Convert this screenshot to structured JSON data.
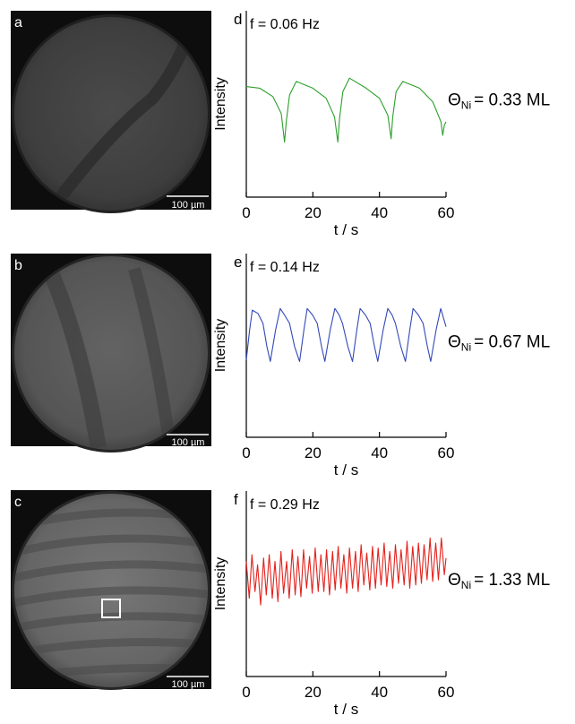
{
  "chart_data": [
    {
      "type": "line",
      "panel_label": "d",
      "image_panel_label": "a",
      "scale_bar": "100 µm",
      "annotation": "f = 0.06 Hz",
      "coverage_symbol": "Θ",
      "coverage_subscript": "Ni",
      "coverage_value": "= 0.33 ML",
      "xlabel": "t / s",
      "ylabel": "Intensity",
      "xticks": [
        "0",
        "20",
        "40",
        "60"
      ],
      "xlim": [
        0,
        60
      ],
      "ylim": [
        0,
        1
      ],
      "line_color": "#2ca02c",
      "series": [
        {
          "x": [
            0,
            4,
            8,
            10.5,
            11.5,
            12,
            13,
            15,
            20,
            24,
            26.5,
            27.5,
            28,
            29,
            31,
            36,
            40,
            42.5,
            43.5,
            44,
            45,
            47,
            52,
            56,
            58.5,
            59,
            59.5,
            60
          ],
          "y": [
            0.63,
            0.62,
            0.57,
            0.47,
            0.3,
            0.42,
            0.58,
            0.66,
            0.62,
            0.56,
            0.45,
            0.3,
            0.44,
            0.6,
            0.68,
            0.62,
            0.56,
            0.46,
            0.32,
            0.45,
            0.6,
            0.66,
            0.62,
            0.54,
            0.42,
            0.34,
            0.4,
            0.42
          ]
        }
      ]
    },
    {
      "type": "line",
      "panel_label": "e",
      "image_panel_label": "b",
      "scale_bar": "100 µm",
      "annotation": "f = 0.14 Hz",
      "coverage_symbol": "Θ",
      "coverage_subscript": "Ni",
      "coverage_value": "= 0.67 ML",
      "xlabel": "t / s",
      "ylabel": "Intensity",
      "xticks": [
        "0",
        "20",
        "40",
        "60"
      ],
      "xlim": [
        0,
        60
      ],
      "ylim": [
        0,
        1
      ],
      "line_color": "#3348b8",
      "series": [
        {
          "x": [
            0,
            1,
            1.8,
            3.5,
            5,
            6.2,
            7.2,
            8.8,
            10.2,
            11.5,
            13,
            14.5,
            16,
            17.3,
            18.3,
            19.9,
            21.3,
            22.6,
            23.6,
            25.2,
            26.6,
            27.9,
            28.9,
            30.5,
            31.9,
            33.2,
            34.2,
            35.8,
            37.2,
            38.5,
            39.5,
            41.1,
            42.5,
            43.8,
            44.8,
            46.4,
            47.8,
            49.1,
            50.1,
            51.7,
            53.1,
            54.4,
            55.4,
            57,
            58.4,
            60
          ],
          "y": [
            0.44,
            0.62,
            0.74,
            0.72,
            0.66,
            0.52,
            0.43,
            0.62,
            0.75,
            0.71,
            0.66,
            0.52,
            0.43,
            0.62,
            0.75,
            0.71,
            0.66,
            0.52,
            0.43,
            0.62,
            0.75,
            0.71,
            0.66,
            0.52,
            0.43,
            0.62,
            0.75,
            0.71,
            0.66,
            0.52,
            0.43,
            0.62,
            0.75,
            0.71,
            0.66,
            0.52,
            0.43,
            0.62,
            0.75,
            0.71,
            0.66,
            0.52,
            0.43,
            0.62,
            0.75,
            0.64
          ]
        }
      ]
    },
    {
      "type": "line",
      "panel_label": "f",
      "image_panel_label": "c",
      "scale_bar": "100 µm",
      "annotation": "f = 0.29 Hz",
      "coverage_symbol": "Θ",
      "coverage_subscript": "Ni",
      "coverage_value": "= 1.33 ML",
      "xlabel": "t / s",
      "ylabel": "Intensity",
      "xticks": [
        "0",
        "20",
        "40",
        "60"
      ],
      "xlim": [
        0,
        60
      ],
      "ylim": [
        0,
        1
      ],
      "line_color": "#e3211c",
      "series": [
        {
          "x": [
            0,
            0.9,
            1.7,
            2.6,
            3.4,
            4.3,
            5.2,
            6.0,
            6.9,
            7.8,
            8.6,
            9.5,
            10.4,
            11.2,
            12.1,
            12.9,
            13.8,
            14.7,
            15.5,
            16.4,
            17.2,
            18.1,
            19.0,
            19.8,
            20.7,
            21.6,
            22.4,
            23.3,
            24.1,
            25.0,
            25.9,
            26.7,
            27.6,
            28.4,
            29.3,
            30.2,
            31.0,
            31.9,
            32.8,
            33.6,
            34.5,
            35.3,
            36.2,
            37.1,
            37.9,
            38.8,
            39.6,
            40.5,
            41.4,
            42.2,
            43.1,
            44.0,
            44.8,
            45.7,
            46.5,
            47.4,
            48.3,
            49.1,
            50.0,
            50.9,
            51.7,
            52.6,
            53.4,
            54.3,
            55.2,
            56.0,
            56.9,
            57.7,
            58.6,
            59.5,
            60
          ],
          "y": [
            0.66,
            0.44,
            0.7,
            0.48,
            0.64,
            0.4,
            0.68,
            0.46,
            0.7,
            0.44,
            0.66,
            0.42,
            0.72,
            0.47,
            0.66,
            0.44,
            0.73,
            0.46,
            0.69,
            0.45,
            0.73,
            0.5,
            0.69,
            0.47,
            0.74,
            0.48,
            0.7,
            0.48,
            0.73,
            0.46,
            0.72,
            0.49,
            0.75,
            0.5,
            0.7,
            0.47,
            0.74,
            0.5,
            0.72,
            0.48,
            0.76,
            0.52,
            0.71,
            0.49,
            0.75,
            0.5,
            0.74,
            0.52,
            0.77,
            0.51,
            0.72,
            0.5,
            0.76,
            0.53,
            0.73,
            0.52,
            0.78,
            0.5,
            0.75,
            0.52,
            0.77,
            0.53,
            0.76,
            0.55,
            0.8,
            0.54,
            0.77,
            0.55,
            0.8,
            0.58,
            0.68
          ]
        }
      ]
    }
  ]
}
